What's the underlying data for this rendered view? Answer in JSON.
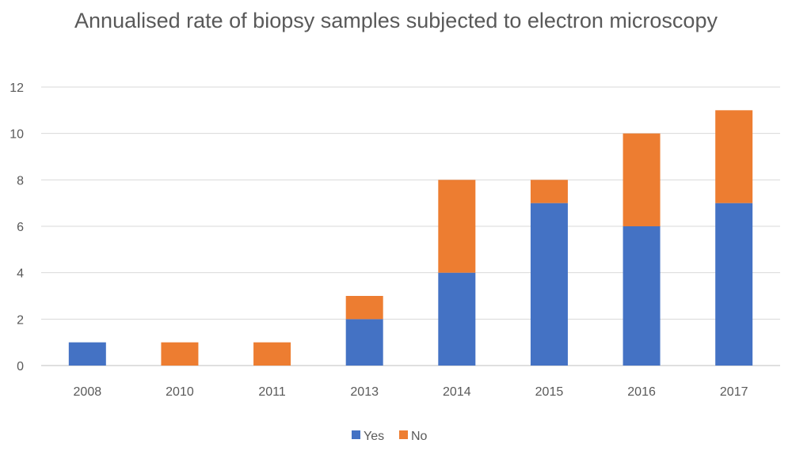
{
  "chart_data": {
    "type": "bar",
    "stacked": true,
    "title": "Annualised rate of biopsy samples subjected to electron microscopy",
    "xlabel": "",
    "ylabel": "",
    "categories": [
      "2008",
      "2010",
      "2011",
      "2013",
      "2014",
      "2015",
      "2016",
      "2017"
    ],
    "series": [
      {
        "name": "Yes",
        "values": [
          1,
          0,
          0,
          2,
          4,
          7,
          6,
          7
        ],
        "color": "#4472C4"
      },
      {
        "name": "No",
        "values": [
          0,
          1,
          1,
          1,
          4,
          1,
          4,
          4
        ],
        "color": "#ED7D31"
      }
    ],
    "ylim": [
      0,
      12
    ],
    "yticks": [
      0,
      2,
      4,
      6,
      8,
      10,
      12
    ],
    "grid": true,
    "legend": "bottom"
  }
}
